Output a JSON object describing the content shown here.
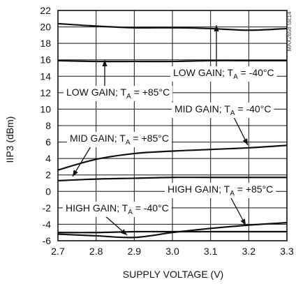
{
  "chart_data": {
    "type": "line",
    "xlabel": "SUPPLY VOLTAGE (V)",
    "ylabel": "IIP3 (dBm)",
    "xlim": [
      2.7,
      3.3
    ],
    "ylim": [
      -6,
      22
    ],
    "xticks": [
      "2.7",
      "2.8",
      "2.9",
      "3.0",
      "3.1",
      "3.2",
      "3.3"
    ],
    "yticks": [
      "22",
      "20",
      "18",
      "16",
      "14",
      "12",
      "10",
      "8",
      "6",
      "4",
      "2",
      "0",
      "-2",
      "-4",
      "-6"
    ],
    "grid": true,
    "side_id": "MAX2658 toc14",
    "series": [
      {
        "name": "LOW GAIN; TA = -40°C",
        "x": [
          2.7,
          2.8,
          2.9,
          3.0,
          3.1,
          3.2,
          3.3
        ],
        "y": [
          20.4,
          20.1,
          19.9,
          19.9,
          19.8,
          19.6,
          19.8
        ]
      },
      {
        "name": "LOW GAIN; TA = +85°C",
        "x": [
          2.7,
          2.8,
          2.9,
          3.0,
          3.1,
          3.2,
          3.3
        ],
        "y": [
          15.9,
          15.8,
          15.8,
          15.8,
          15.9,
          15.9,
          15.9
        ]
      },
      {
        "name": "MID GAIN; TA = +85°C",
        "x": [
          2.7,
          2.8,
          2.9,
          3.0,
          3.1,
          3.2,
          3.3
        ],
        "y": [
          2.6,
          3.9,
          4.6,
          4.9,
          5.1,
          5.3,
          5.6
        ]
      },
      {
        "name": "MID GAIN; TA = -40°C",
        "x": [
          2.7,
          2.8,
          2.9,
          3.0,
          3.1,
          3.2,
          3.3
        ],
        "y": [
          1.3,
          1.5,
          1.6,
          1.7,
          1.7,
          1.7,
          1.7
        ]
      },
      {
        "name": "HIGH GAIN; TA = +85°C",
        "x": [
          2.7,
          2.8,
          2.9,
          3.0,
          3.1,
          3.2,
          3.3
        ],
        "y": [
          -5.2,
          -5.4,
          -5.6,
          -5.0,
          -4.5,
          -4.1,
          -3.8
        ]
      },
      {
        "name": "HIGH GAIN; TA = -40°C",
        "x": [
          2.7,
          2.8,
          2.9,
          3.0,
          3.1,
          3.2,
          3.3
        ],
        "y": [
          -5.0,
          -5.0,
          -4.9,
          -4.9,
          -4.9,
          -4.9,
          -4.9
        ]
      }
    ],
    "annotations": [
      {
        "prefix": "LOW GAIN; T",
        "sub": "A",
        "suffix": " = -40°C"
      },
      {
        "prefix": "LOW GAIN; T",
        "sub": "A",
        "suffix": " = +85°C"
      },
      {
        "prefix": "MID GAIN; T",
        "sub": "A",
        "suffix": " = -40°C"
      },
      {
        "prefix": "MID GAIN; T",
        "sub": "A",
        "suffix": " = +85°C"
      },
      {
        "prefix": "HIGH GAIN; T",
        "sub": "A",
        "suffix": " = +85°C"
      },
      {
        "prefix": "HIGH GAIN; T",
        "sub": "A",
        "suffix": " = -40°C"
      }
    ]
  }
}
